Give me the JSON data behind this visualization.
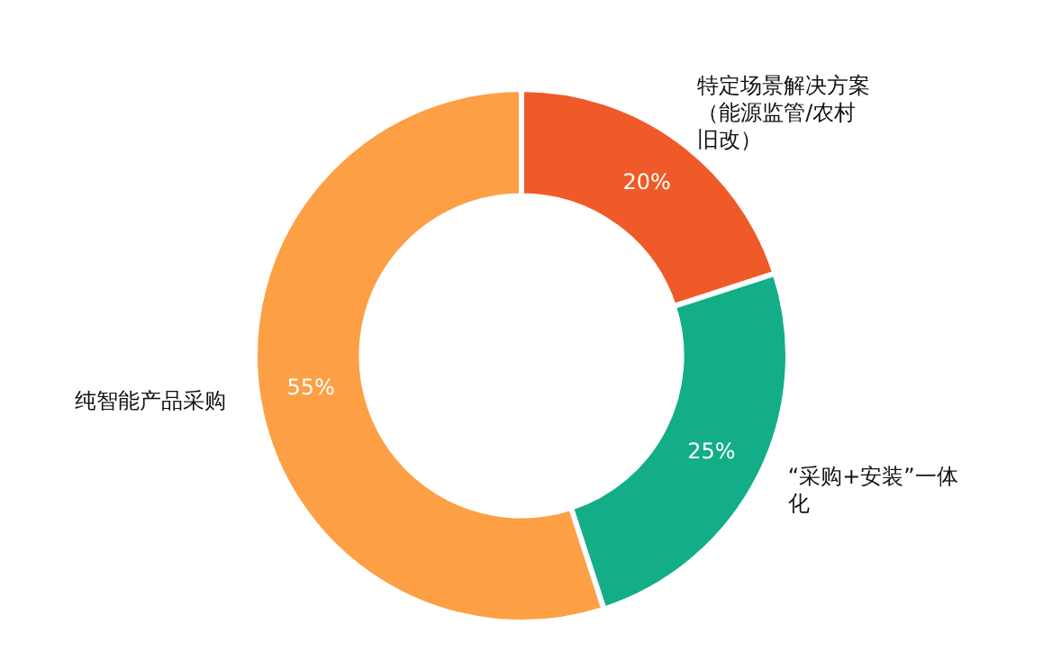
{
  "chart_data": {
    "type": "donut",
    "categories": [
      "特定场景解决方案（能源监管/农村旧改）",
      "“采购+安装”一体化",
      "纯智能产品采购"
    ],
    "values": [
      20,
      25,
      55
    ],
    "colors": [
      "#f05a28",
      "#13ae87",
      "#fd9f44"
    ],
    "value_labels": [
      "20%",
      "25%",
      "55%"
    ],
    "legend": false
  }
}
